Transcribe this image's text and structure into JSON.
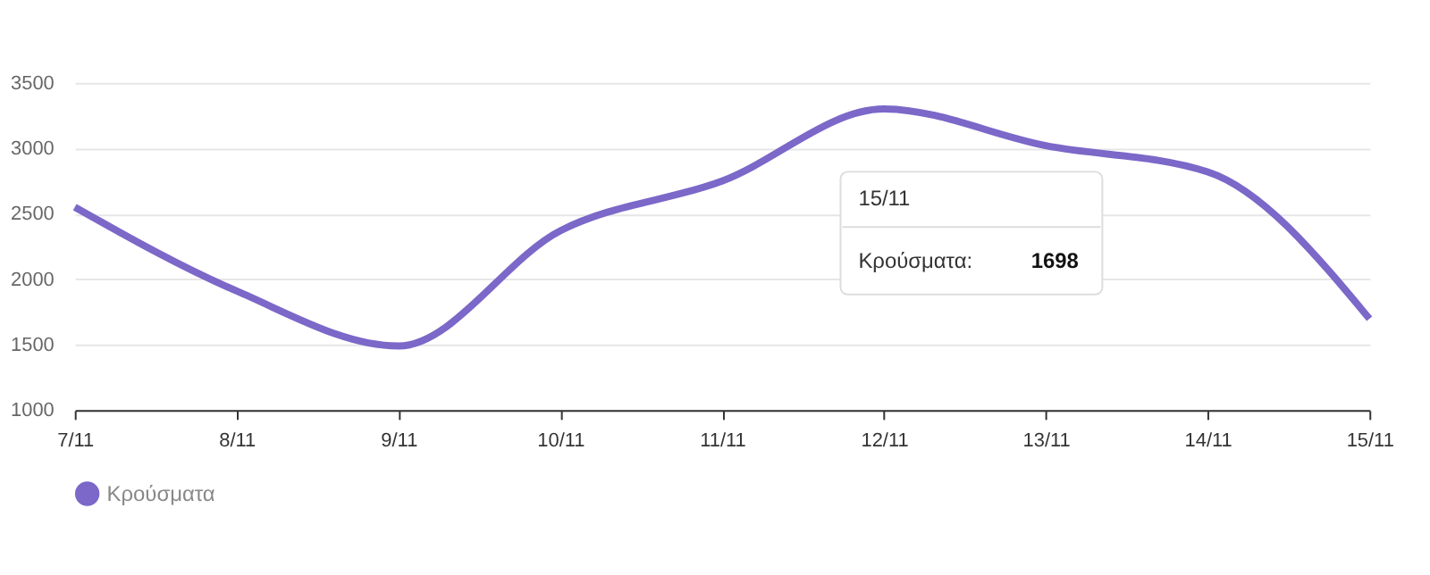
{
  "chart_data": {
    "type": "line",
    "categories": [
      "7/11",
      "8/11",
      "9/11",
      "10/11",
      "11/11",
      "12/11",
      "13/11",
      "14/11",
      "15/11"
    ],
    "series": [
      {
        "name": "Κρούσματα",
        "color": "#7b68c8",
        "values": [
          2550,
          1910,
          1490,
          2370,
          2750,
          3300,
          3020,
          2820,
          1698
        ]
      }
    ],
    "ylim": [
      1000,
      3500
    ],
    "yticks": [
      1000,
      1500,
      2000,
      2500,
      3000,
      3500
    ],
    "grid": "y",
    "legend": "bottom",
    "marker": "none",
    "line_style": "solid",
    "annotations": [
      "15/11",
      "Κρούσματα:",
      "1698"
    ]
  }
}
